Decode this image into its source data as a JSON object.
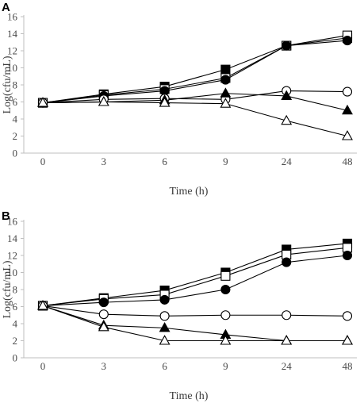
{
  "chart_data": [
    {
      "type": "line",
      "panel_label": "A",
      "xlabel": "Time (h)",
      "ylabel": "Log(cfu/mL)",
      "categories": [
        "0",
        "3",
        "6",
        "9",
        "24",
        "48"
      ],
      "ylim": [
        0,
        16
      ],
      "yticks": [
        "0",
        "2",
        "4",
        "6",
        "8",
        "10",
        "12",
        "14",
        "16"
      ],
      "grid": false,
      "series": [
        {
          "marker": "filled-square",
          "values": [
            5.9,
            6.9,
            7.8,
            9.8,
            12.6,
            13.5
          ]
        },
        {
          "marker": "open-square",
          "values": [
            5.9,
            6.8,
            7.5,
            8.8,
            12.6,
            13.8
          ]
        },
        {
          "marker": "filled-circle",
          "values": [
            5.9,
            6.7,
            7.3,
            8.6,
            12.6,
            13.2
          ]
        },
        {
          "marker": "open-circle",
          "values": [
            5.9,
            6.3,
            6.4,
            6.3,
            7.3,
            7.2
          ]
        },
        {
          "marker": "filled-triangle",
          "values": [
            5.9,
            6.0,
            6.2,
            7.0,
            6.7,
            5.0
          ]
        },
        {
          "marker": "open-triangle",
          "values": [
            5.9,
            6.0,
            5.9,
            5.8,
            3.8,
            2.0
          ]
        }
      ]
    },
    {
      "type": "line",
      "panel_label": "B",
      "xlabel": "Time (h)",
      "ylabel": "Log(cfu/mL)",
      "categories": [
        "0",
        "3",
        "6",
        "9",
        "24",
        "48"
      ],
      "ylim": [
        0,
        16
      ],
      "yticks": [
        "0",
        "2",
        "4",
        "6",
        "8",
        "10",
        "12",
        "14",
        "16"
      ],
      "grid": false,
      "series": [
        {
          "marker": "filled-square",
          "values": [
            6.1,
            7.0,
            7.9,
            10.0,
            12.7,
            13.4
          ]
        },
        {
          "marker": "open-square",
          "values": [
            6.1,
            6.9,
            7.4,
            9.6,
            12.1,
            12.9
          ]
        },
        {
          "marker": "filled-circle",
          "values": [
            6.1,
            6.5,
            6.8,
            8.0,
            11.2,
            12.0
          ]
        },
        {
          "marker": "open-circle",
          "values": [
            6.1,
            5.1,
            4.9,
            5.0,
            5.0,
            4.9
          ]
        },
        {
          "marker": "filled-triangle",
          "values": [
            6.1,
            3.8,
            3.5,
            2.7,
            2.0,
            2.0
          ]
        },
        {
          "marker": "open-triangle",
          "values": [
            6.1,
            3.6,
            2.0,
            2.0,
            2.0,
            2.0
          ]
        }
      ]
    }
  ]
}
